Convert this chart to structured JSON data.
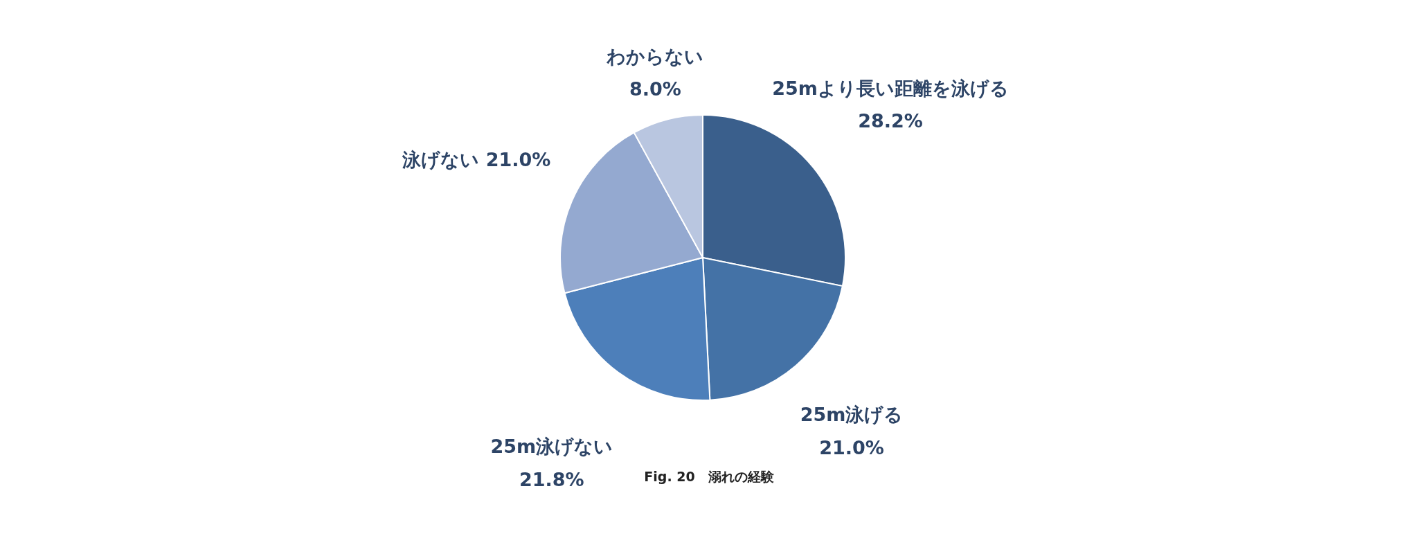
{
  "chart_data": {
    "type": "pie",
    "title": "Fig. 20　溺れの経験",
    "categories": [
      "25mより長い距離を泳げる",
      "25m泳げる",
      "25m泳げない",
      "泳げない",
      "わからない"
    ],
    "values": [
      28.2,
      21.0,
      21.8,
      21.0,
      8.0
    ],
    "value_labels": [
      "28.2%",
      "21.0%",
      "21.8%",
      "21.0%",
      "8.0%"
    ],
    "colors": [
      "#3a5f8c",
      "#4472a6",
      "#4d7fba",
      "#94a9d0",
      "#b9c6e0"
    ]
  }
}
